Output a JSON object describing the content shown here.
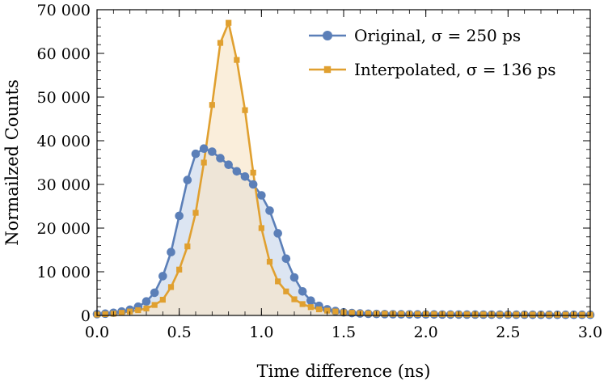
{
  "chart_data": {
    "type": "line",
    "xlabel": "Time difference (ns)",
    "ylabel": "Normailzed Counts",
    "xlim": [
      0,
      3
    ],
    "ylim": [
      0,
      70000
    ],
    "x_ticks": [
      0.0,
      0.5,
      1.0,
      1.5,
      2.0,
      2.5,
      3.0
    ],
    "x_tick_labels": [
      "0.0",
      "0.5",
      "1.0",
      "1.5",
      "2.0",
      "2.5",
      "3.0"
    ],
    "y_ticks": [
      0,
      10000,
      20000,
      30000,
      40000,
      50000,
      60000,
      70000
    ],
    "y_tick_labels": [
      "0",
      "10 000",
      "20 000",
      "30 000",
      "40 000",
      "50 000",
      "60 000",
      "70 000"
    ],
    "grid": false,
    "legend_position": "top-right",
    "series": [
      {
        "name": "Original, σ = 250 ps",
        "marker": "circle",
        "color": "#5b7fb8",
        "fill": "#dce5f2",
        "x": [
          0.0,
          0.05,
          0.1,
          0.15,
          0.2,
          0.25,
          0.3,
          0.35,
          0.4,
          0.45,
          0.5,
          0.55,
          0.6,
          0.65,
          0.7,
          0.75,
          0.8,
          0.85,
          0.9,
          0.95,
          1.0,
          1.05,
          1.1,
          1.15,
          1.2,
          1.25,
          1.3,
          1.35,
          1.4,
          1.45,
          1.5,
          1.55,
          1.6,
          1.65,
          1.7,
          1.75,
          1.8,
          1.85,
          1.9,
          1.95,
          2.0,
          2.05,
          2.1,
          2.15,
          2.2,
          2.25,
          2.3,
          2.35,
          2.4,
          2.45,
          2.5,
          2.55,
          2.6,
          2.65,
          2.7,
          2.75,
          2.8,
          2.85,
          2.9,
          2.95,
          3.0
        ],
        "y": [
          300,
          400,
          600,
          900,
          1300,
          2000,
          3200,
          5200,
          9000,
          14500,
          22800,
          31000,
          37000,
          38200,
          37500,
          36000,
          34500,
          33000,
          31800,
          30000,
          27500,
          24000,
          18800,
          13000,
          8700,
          5500,
          3400,
          2200,
          1400,
          1000,
          700,
          550,
          450,
          380,
          330,
          300,
          280,
          260,
          250,
          240,
          230,
          220,
          210,
          205,
          200,
          195,
          190,
          185,
          180,
          175,
          170,
          165,
          160,
          155,
          150,
          150,
          150,
          150,
          150,
          150,
          150
        ]
      },
      {
        "name": "Interpolated, σ = 136 ps",
        "marker": "square",
        "color": "#e0a030",
        "fill": "#f7e5c8",
        "x": [
          0.0,
          0.05,
          0.1,
          0.15,
          0.2,
          0.25,
          0.3,
          0.35,
          0.4,
          0.45,
          0.5,
          0.55,
          0.6,
          0.65,
          0.7,
          0.75,
          0.8,
          0.85,
          0.9,
          0.95,
          1.0,
          1.05,
          1.1,
          1.15,
          1.2,
          1.25,
          1.3,
          1.35,
          1.4,
          1.45,
          1.5,
          1.55,
          1.6,
          1.65,
          1.7,
          1.75,
          1.8,
          1.85,
          1.9,
          1.95,
          2.0,
          2.05,
          2.1,
          2.15,
          2.2,
          2.25,
          2.3,
          2.35,
          2.4,
          2.45,
          2.5,
          2.55,
          2.6,
          2.65,
          2.7,
          2.75,
          2.8,
          2.85,
          2.9,
          2.95,
          3.0
        ],
        "y": [
          200,
          300,
          400,
          600,
          900,
          1200,
          1600,
          2400,
          3600,
          6500,
          10500,
          15800,
          23500,
          35000,
          48200,
          62400,
          67000,
          58500,
          47000,
          32700,
          20000,
          12300,
          7800,
          5500,
          3700,
          2600,
          1900,
          1400,
          1100,
          900,
          700,
          600,
          500,
          450,
          400,
          380,
          350,
          330,
          310,
          300,
          290,
          280,
          270,
          260,
          250,
          240,
          230,
          220,
          210,
          200,
          195,
          190,
          185,
          180,
          175,
          170,
          165,
          160,
          155,
          150,
          150
        ]
      }
    ]
  }
}
